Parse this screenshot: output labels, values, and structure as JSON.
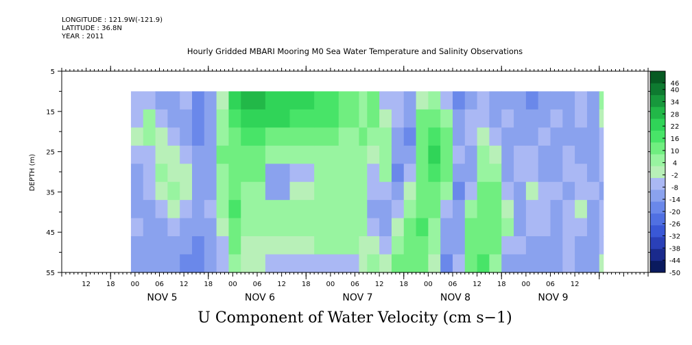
{
  "header": {
    "longitude": "LONGITUDE : 121.9W(-121.9)",
    "latitude": "LATITUDE : 36.8N",
    "year": "YEAR : 2011"
  },
  "chart_data": {
    "type": "heatmap",
    "title": "Hourly Gridded MBARI Mooring M0 Sea Water Temperature and Salinity Observations",
    "xlabel": "U Component of Water Velocity (cm s−1)",
    "ylabel": "DEPTH (m)",
    "y_ticks": [
      "5",
      "15",
      "25",
      "35",
      "45",
      "55"
    ],
    "ylim": [
      55,
      5
    ],
    "x_hour_ticks": [
      "12",
      "18",
      "00",
      "06",
      "12",
      "18",
      "00",
      "06",
      "12",
      "18",
      "00",
      "06",
      "12",
      "18",
      "00",
      "06",
      "12",
      "18",
      "00",
      "06",
      "12"
    ],
    "x_day_labels": [
      "NOV  5",
      "NOV  6",
      "NOV  7",
      "NOV  8",
      "NOV  9"
    ],
    "colorbar": {
      "labels": [
        "46",
        "40",
        "34",
        "28",
        "22",
        "16",
        "10",
        "4",
        "-2",
        "-8",
        "-14",
        "-20",
        "-26",
        "-32",
        "-38",
        "-44",
        "-50"
      ],
      "range": [
        -50,
        49
      ],
      "colors": [
        "#0a1a5e",
        "#1a2a8c",
        "#2a40b8",
        "#3a58d6",
        "#5070e2",
        "#6a88ea",
        "#8aa2ee",
        "#aab8f4",
        "#b8f0b8",
        "#98f4a0",
        "#70ee80",
        "#48e468",
        "#30d458",
        "#22b848",
        "#17983c",
        "#0e7a30",
        "#075a22"
      ]
    },
    "data_start_hour": 17,
    "data_end_hour": 133,
    "depth_range": [
      10,
      55
    ],
    "series": [
      {
        "hour": 17,
        "u": [
          -6,
          -4,
          2,
          -8,
          -10,
          -12,
          -10,
          -8,
          -12,
          -10
        ]
      },
      {
        "hour": 20,
        "u": [
          -4,
          4,
          6,
          -4,
          -8,
          -6,
          -10,
          -12,
          -14,
          -12
        ]
      },
      {
        "hour": 23,
        "u": [
          -10,
          -6,
          -2,
          2,
          4,
          0,
          -6,
          -10,
          -12,
          -10
        ]
      },
      {
        "hour": 26,
        "u": [
          -14,
          -12,
          -8,
          -2,
          2,
          4,
          -2,
          -8,
          -12,
          -14
        ]
      },
      {
        "hour": 29,
        "u": [
          -8,
          -10,
          -12,
          -6,
          0,
          2,
          -4,
          -10,
          -14,
          -16
        ]
      },
      {
        "hour": 32,
        "u": [
          -16,
          -18,
          -16,
          -14,
          -12,
          -10,
          -12,
          -14,
          -18,
          -16
        ]
      },
      {
        "hour": 35,
        "u": [
          -12,
          -10,
          -12,
          -14,
          -12,
          -10,
          -8,
          -10,
          -12,
          -14
        ]
      },
      {
        "hour": 38,
        "u": [
          2,
          6,
          8,
          10,
          8,
          6,
          4,
          -2,
          -6,
          -8
        ]
      },
      {
        "hour": 41,
        "u": [
          20,
          16,
          14,
          12,
          12,
          14,
          16,
          14,
          10,
          6
        ]
      },
      {
        "hour": 44,
        "u": [
          26,
          22,
          16,
          12,
          10,
          8,
          6,
          4,
          2,
          0
        ]
      },
      {
        "hour": 50,
        "u": [
          24,
          20,
          14,
          8,
          -10,
          -10,
          6,
          4,
          2,
          -4
        ]
      },
      {
        "hour": 56,
        "u": [
          22,
          18,
          12,
          6,
          -8,
          -2,
          6,
          4,
          2,
          -4
        ]
      },
      {
        "hour": 62,
        "u": [
          18,
          16,
          12,
          6,
          4,
          6,
          8,
          6,
          4,
          -4
        ]
      },
      {
        "hour": 68,
        "u": [
          10,
          10,
          8,
          6,
          4,
          6,
          8,
          6,
          4,
          -4
        ]
      },
      {
        "hour": 73,
        "u": [
          6,
          8,
          10,
          8,
          6,
          4,
          6,
          4,
          2,
          -2
        ]
      },
      {
        "hour": 75,
        "u": [
          12,
          10,
          6,
          2,
          -4,
          -8,
          -10,
          -6,
          -2,
          4
        ]
      },
      {
        "hour": 78,
        "u": [
          -4,
          2,
          6,
          8,
          4,
          -6,
          -12,
          -10,
          -6,
          2
        ]
      },
      {
        "hour": 81,
        "u": [
          -8,
          -6,
          -10,
          -14,
          -18,
          -12,
          -4,
          2,
          6,
          10
        ]
      },
      {
        "hour": 84,
        "u": [
          -12,
          -14,
          -16,
          -12,
          -8,
          -2,
          6,
          10,
          12,
          14
        ]
      },
      {
        "hour": 87,
        "u": [
          2,
          10,
          14,
          12,
          10,
          12,
          14,
          16,
          14,
          12
        ]
      },
      {
        "hour": 90,
        "u": [
          8,
          14,
          18,
          20,
          16,
          14,
          12,
          8,
          4,
          2
        ]
      },
      {
        "hour": 93,
        "u": [
          -4,
          6,
          12,
          14,
          10,
          4,
          -4,
          -10,
          -14,
          -16
        ]
      },
      {
        "hour": 96,
        "u": [
          -16,
          -14,
          -10,
          -8,
          -12,
          -16,
          -14,
          -12,
          -10,
          -8
        ]
      },
      {
        "hour": 99,
        "u": [
          -10,
          -8,
          -4,
          -10,
          -12,
          -4,
          4,
          10,
          12,
          14
        ]
      },
      {
        "hour": 102,
        "u": [
          -6,
          -4,
          2,
          6,
          8,
          10,
          12,
          10,
          14,
          16
        ]
      },
      {
        "hour": 105,
        "u": [
          -12,
          -10,
          -6,
          2,
          8,
          12,
          14,
          12,
          10,
          8
        ]
      },
      {
        "hour": 108,
        "u": [
          -10,
          -8,
          -12,
          -14,
          -12,
          -6,
          2,
          4,
          -4,
          -10
        ]
      },
      {
        "hour": 111,
        "u": [
          -14,
          -12,
          -10,
          -6,
          -8,
          -10,
          -12,
          -10,
          -8,
          -12
        ]
      },
      {
        "hour": 114,
        "u": [
          -16,
          -14,
          -12,
          -8,
          -4,
          2,
          -4,
          -8,
          -12,
          -14
        ]
      },
      {
        "hour": 117,
        "u": [
          -14,
          -12,
          -6,
          -10,
          -12,
          -8,
          -4,
          -6,
          -10,
          -12
        ]
      },
      {
        "hour": 120,
        "u": [
          -10,
          -8,
          -12,
          -14,
          -10,
          -8,
          -12,
          -14,
          -12,
          -10
        ]
      },
      {
        "hour": 123,
        "u": [
          -12,
          -14,
          -10,
          -6,
          -8,
          -10,
          -8,
          -4,
          -6,
          -8
        ]
      },
      {
        "hour": 126,
        "u": [
          -6,
          -8,
          -12,
          -10,
          -6,
          -4,
          -2,
          -6,
          -10,
          -12
        ]
      },
      {
        "hour": 129,
        "u": [
          -10,
          -12,
          -14,
          -12,
          -10,
          -8,
          -10,
          -12,
          -14,
          -10
        ]
      },
      {
        "hour": 132,
        "u": [
          4,
          2,
          -4,
          -6,
          -8,
          -10,
          -8,
          -6,
          -4,
          -2
        ]
      }
    ]
  }
}
